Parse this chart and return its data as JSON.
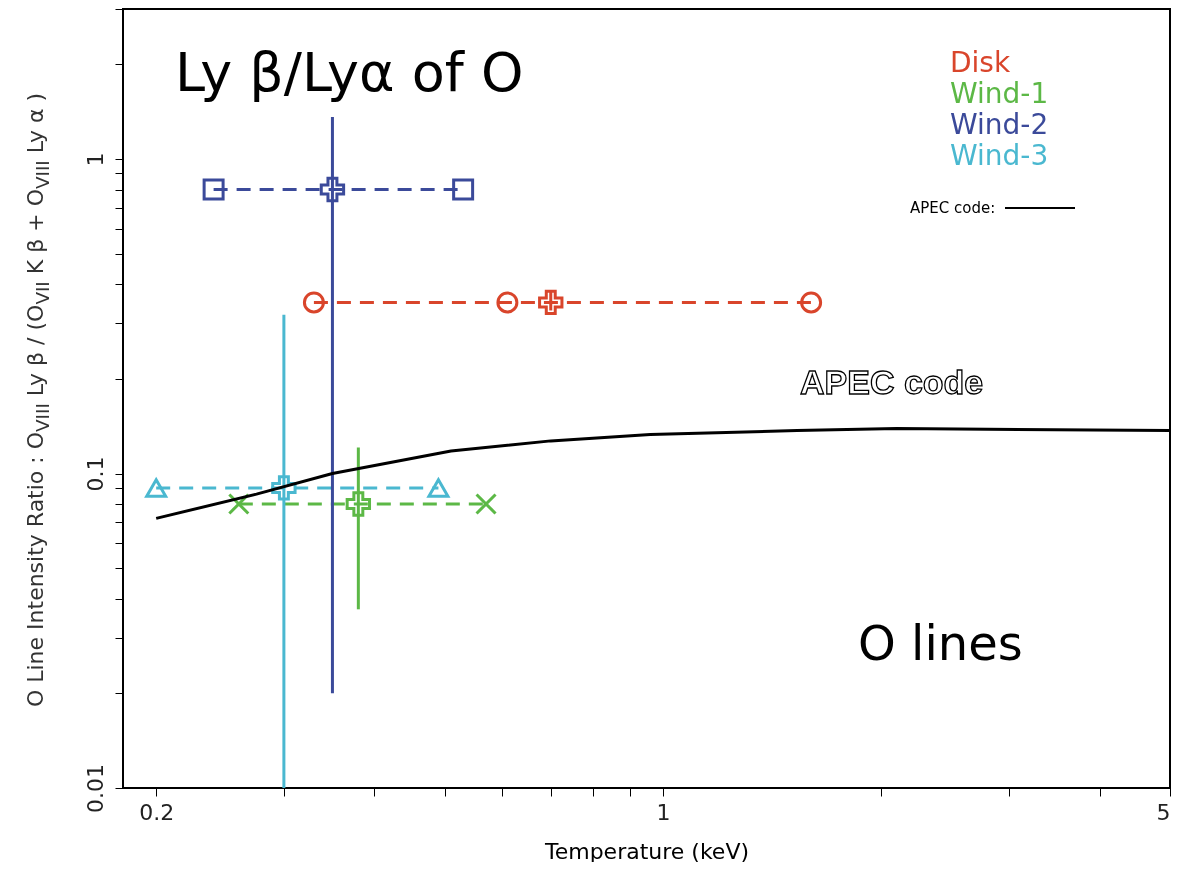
{
  "chart_data": {
    "type": "scatter",
    "title": "Ly β/Lyα of O",
    "ylabel": "O Line Intensity Ratio : O$_{VIII}$ Ly β / (O$_{VII}$ K β + O$_{VIII}$ Ly α )",
    "xlabel": "Temperature (keV)",
    "xlim": [
      0.18,
      5
    ],
    "ylim": [
      0.01,
      3
    ],
    "log": "xy",
    "grid": false,
    "legend": "top right",
    "xticks": [
      0.2,
      {
        "value": 0.3,
        "label": null
      },
      {
        "value": 0.4,
        "label": null
      },
      {
        "value": 0.5,
        "label": null
      },
      {
        "value": 0.6,
        "label": null
      },
      {
        "value": 0.7,
        "label": null
      },
      {
        "value": 0.8,
        "label": null
      },
      {
        "value": 0.9,
        "label": null
      },
      1,
      {
        "value": 2,
        "label": null
      },
      {
        "value": 3,
        "label": null
      },
      {
        "value": 4,
        "label": null
      },
      5
    ],
    "yticks": [
      0.01,
      {
        "value": 0.02,
        "label": null
      },
      {
        "value": 0.03,
        "label": null
      },
      {
        "value": 0.04,
        "label": null
      },
      {
        "value": 0.05,
        "label": null
      },
      {
        "value": 0.06,
        "label": null
      },
      {
        "value": 0.07,
        "label": null
      },
      {
        "value": 0.08,
        "label": null
      },
      {
        "value": 0.09,
        "label": null
      },
      0.1,
      {
        "value": 0.2,
        "label": null
      },
      {
        "value": 0.3,
        "label": null
      },
      {
        "value": 0.4,
        "label": null
      },
      {
        "value": 0.5,
        "label": null
      },
      {
        "value": 0.6,
        "label": null
      },
      {
        "value": 0.7,
        "label": null
      },
      {
        "value": 0.8,
        "label": null
      },
      {
        "value": 0.9,
        "label": null
      },
      1,
      {
        "value": 2,
        "label": null
      },
      {
        "value": 3,
        "label": null
      }
    ],
    "series": [
      {
        "name": "Disk",
        "type": "line",
        "line_style": "dashed",
        "marker": "circle",
        "color": "#d9452b",
        "x": [
          0.33,
          0.61,
          1.6
        ],
        "values": [
          0.35,
          0.35,
          0.35
        ]
      },
      {
        "name": "Wind-1",
        "type": "line",
        "line_style": "dashed",
        "marker": "cross",
        "color": "#5cb846",
        "x": [
          0.26,
          0.57
        ],
        "values": [
          0.08,
          0.08
        ]
      },
      {
        "name": "Wind-2",
        "type": "line",
        "line_style": "dashed",
        "marker": "square",
        "color": "#3b4a9a",
        "x": [
          0.24,
          0.53
        ],
        "values": [
          0.8,
          0.8
        ]
      },
      {
        "name": "Wind-3",
        "type": "line",
        "line_style": "dashed",
        "marker": "triangle",
        "color": "#4ab8d0",
        "x": [
          0.2,
          0.49
        ],
        "values": [
          0.09,
          0.09
        ]
      },
      {
        "marker": "cross",
        "color": "#d9452b",
        "x": [
          0.7
        ],
        "values": [
          0.35
        ],
        "errors": [
          [
            0.33,
            0.38
          ]
        ]
      },
      {
        "marker": "cross",
        "color": "#5cb846",
        "x": [
          0.38
        ],
        "values": [
          0.08
        ],
        "errors": [
          [
            0.037,
            0.121
          ]
        ]
      },
      {
        "marker": "cross",
        "color": "#3b4a9a",
        "x": [
          0.35
        ],
        "values": [
          0.8
        ],
        "errors": [
          [
            0.02,
            1.36
          ]
        ]
      },
      {
        "marker": "cross",
        "color": "#4ab8d0",
        "x": [
          0.3
        ],
        "values": [
          0.09
        ],
        "errors": [
          [
            0.01,
            0.32
          ]
        ]
      },
      {
        "name": "APEC code:",
        "type": "line",
        "line_style": "solid",
        "marker": "none",
        "color": "#000000",
        "x": [
          0.2,
          0.275,
          0.35,
          0.51,
          0.7,
          0.96,
          1.53,
          2.1,
          5
        ],
        "values": [
          0.072,
          0.086,
          0.1,
          0.118,
          0.127,
          0.133,
          0.137,
          0.139,
          0.137
        ]
      }
    ],
    "annotations": [
      "APEC code",
      "O lines"
    ]
  }
}
